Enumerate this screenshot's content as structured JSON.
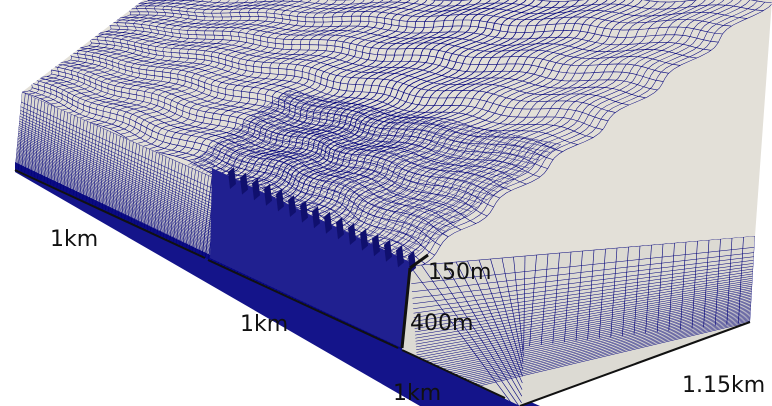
{
  "labels": {
    "left_edge": "1km",
    "front_left_segment": "1km",
    "front_right_segment": "1km",
    "right_edge": "1.15km",
    "cut_width": "150m",
    "cut_depth": "400m"
  },
  "colors": {
    "top_surface": "#e3e0d8",
    "mesh_line": "#00007a",
    "side_face": "#1b1b9a",
    "background": "#ffffff",
    "dimension_line": "#111111"
  }
}
